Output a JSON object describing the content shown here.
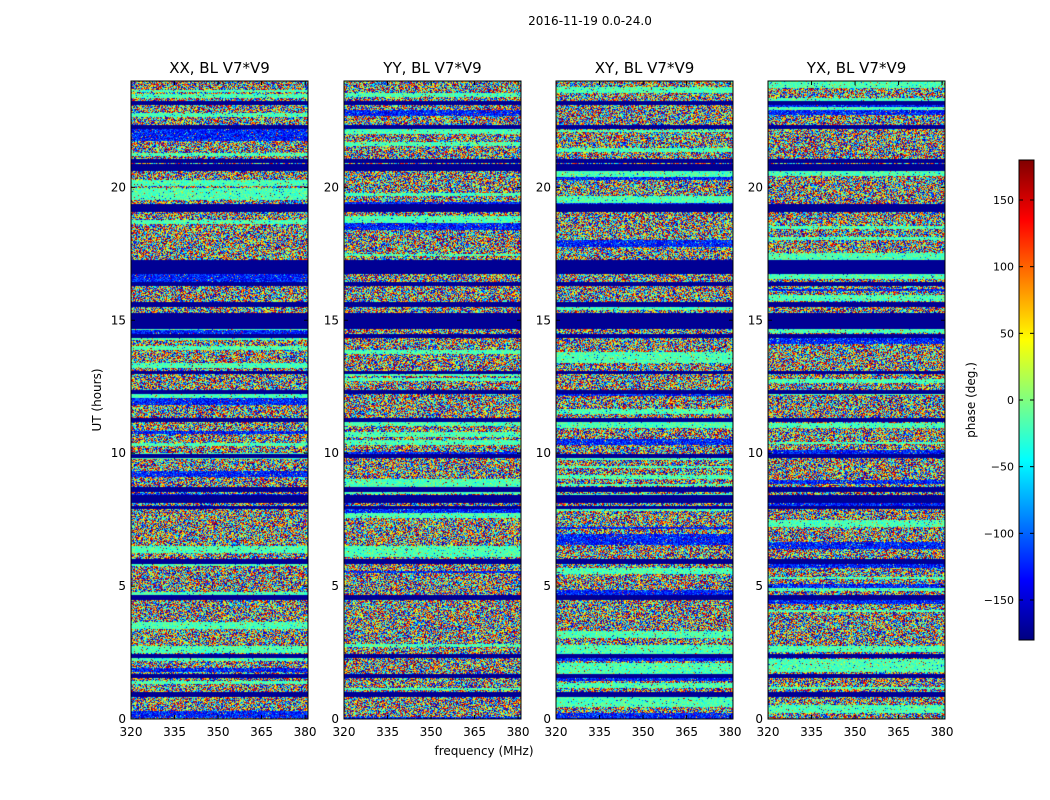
{
  "figure_title": "2016-11-19 0.0-24.0",
  "chart_data": {
    "type": "heatmap",
    "xlabel": "frequency (MHz)",
    "ylabel": "UT (hours)",
    "xlim": [
      320,
      381
    ],
    "ylim": [
      0,
      24
    ],
    "xticks": [
      320,
      335,
      350,
      365,
      380
    ],
    "yticks": [
      0,
      5,
      10,
      15,
      20
    ],
    "colorscale": "jet",
    "panels": [
      {
        "title": "XX, BL V7*V9"
      },
      {
        "title": "YY, BL V7*V9"
      },
      {
        "title": "XY, BL V7*V9"
      },
      {
        "title": "YX, BL V7*V9"
      }
    ],
    "colorbar": {
      "label": "phase (deg.)",
      "vmin": -180,
      "vmax": 180,
      "ticks": [
        150,
        100,
        50,
        0,
        -50,
        -100,
        -150
      ],
      "tick_labels": [
        "150",
        "100",
        "50",
        "0",
        "−50",
        "−100",
        "−150"
      ],
      "colors": [
        "#000080",
        "#0000ff",
        "#0080ff",
        "#00ffff",
        "#80ff80",
        "#ffff00",
        "#ff8000",
        "#ff0000",
        "#800000"
      ]
    },
    "flagged_ut_bands": [
      [
        0.85,
        1.05
      ],
      [
        1.55,
        1.7
      ],
      [
        2.3,
        2.45
      ],
      [
        4.5,
        4.7
      ],
      [
        5.85,
        6.05
      ],
      [
        7.9,
        8.05
      ],
      [
        8.15,
        8.45
      ],
      [
        8.55,
        8.75
      ],
      [
        9.85,
        10.0
      ],
      [
        11.2,
        11.35
      ],
      [
        12.25,
        12.4
      ],
      [
        13.0,
        13.1
      ],
      [
        14.35,
        14.5
      ],
      [
        14.7,
        15.3
      ],
      [
        15.5,
        15.7
      ],
      [
        16.3,
        16.45
      ],
      [
        16.75,
        17.3
      ],
      [
        19.1,
        19.4
      ],
      [
        20.65,
        20.9
      ],
      [
        20.95,
        21.1
      ],
      [
        22.2,
        22.35
      ],
      [
        23.1,
        23.25
      ]
    ]
  }
}
